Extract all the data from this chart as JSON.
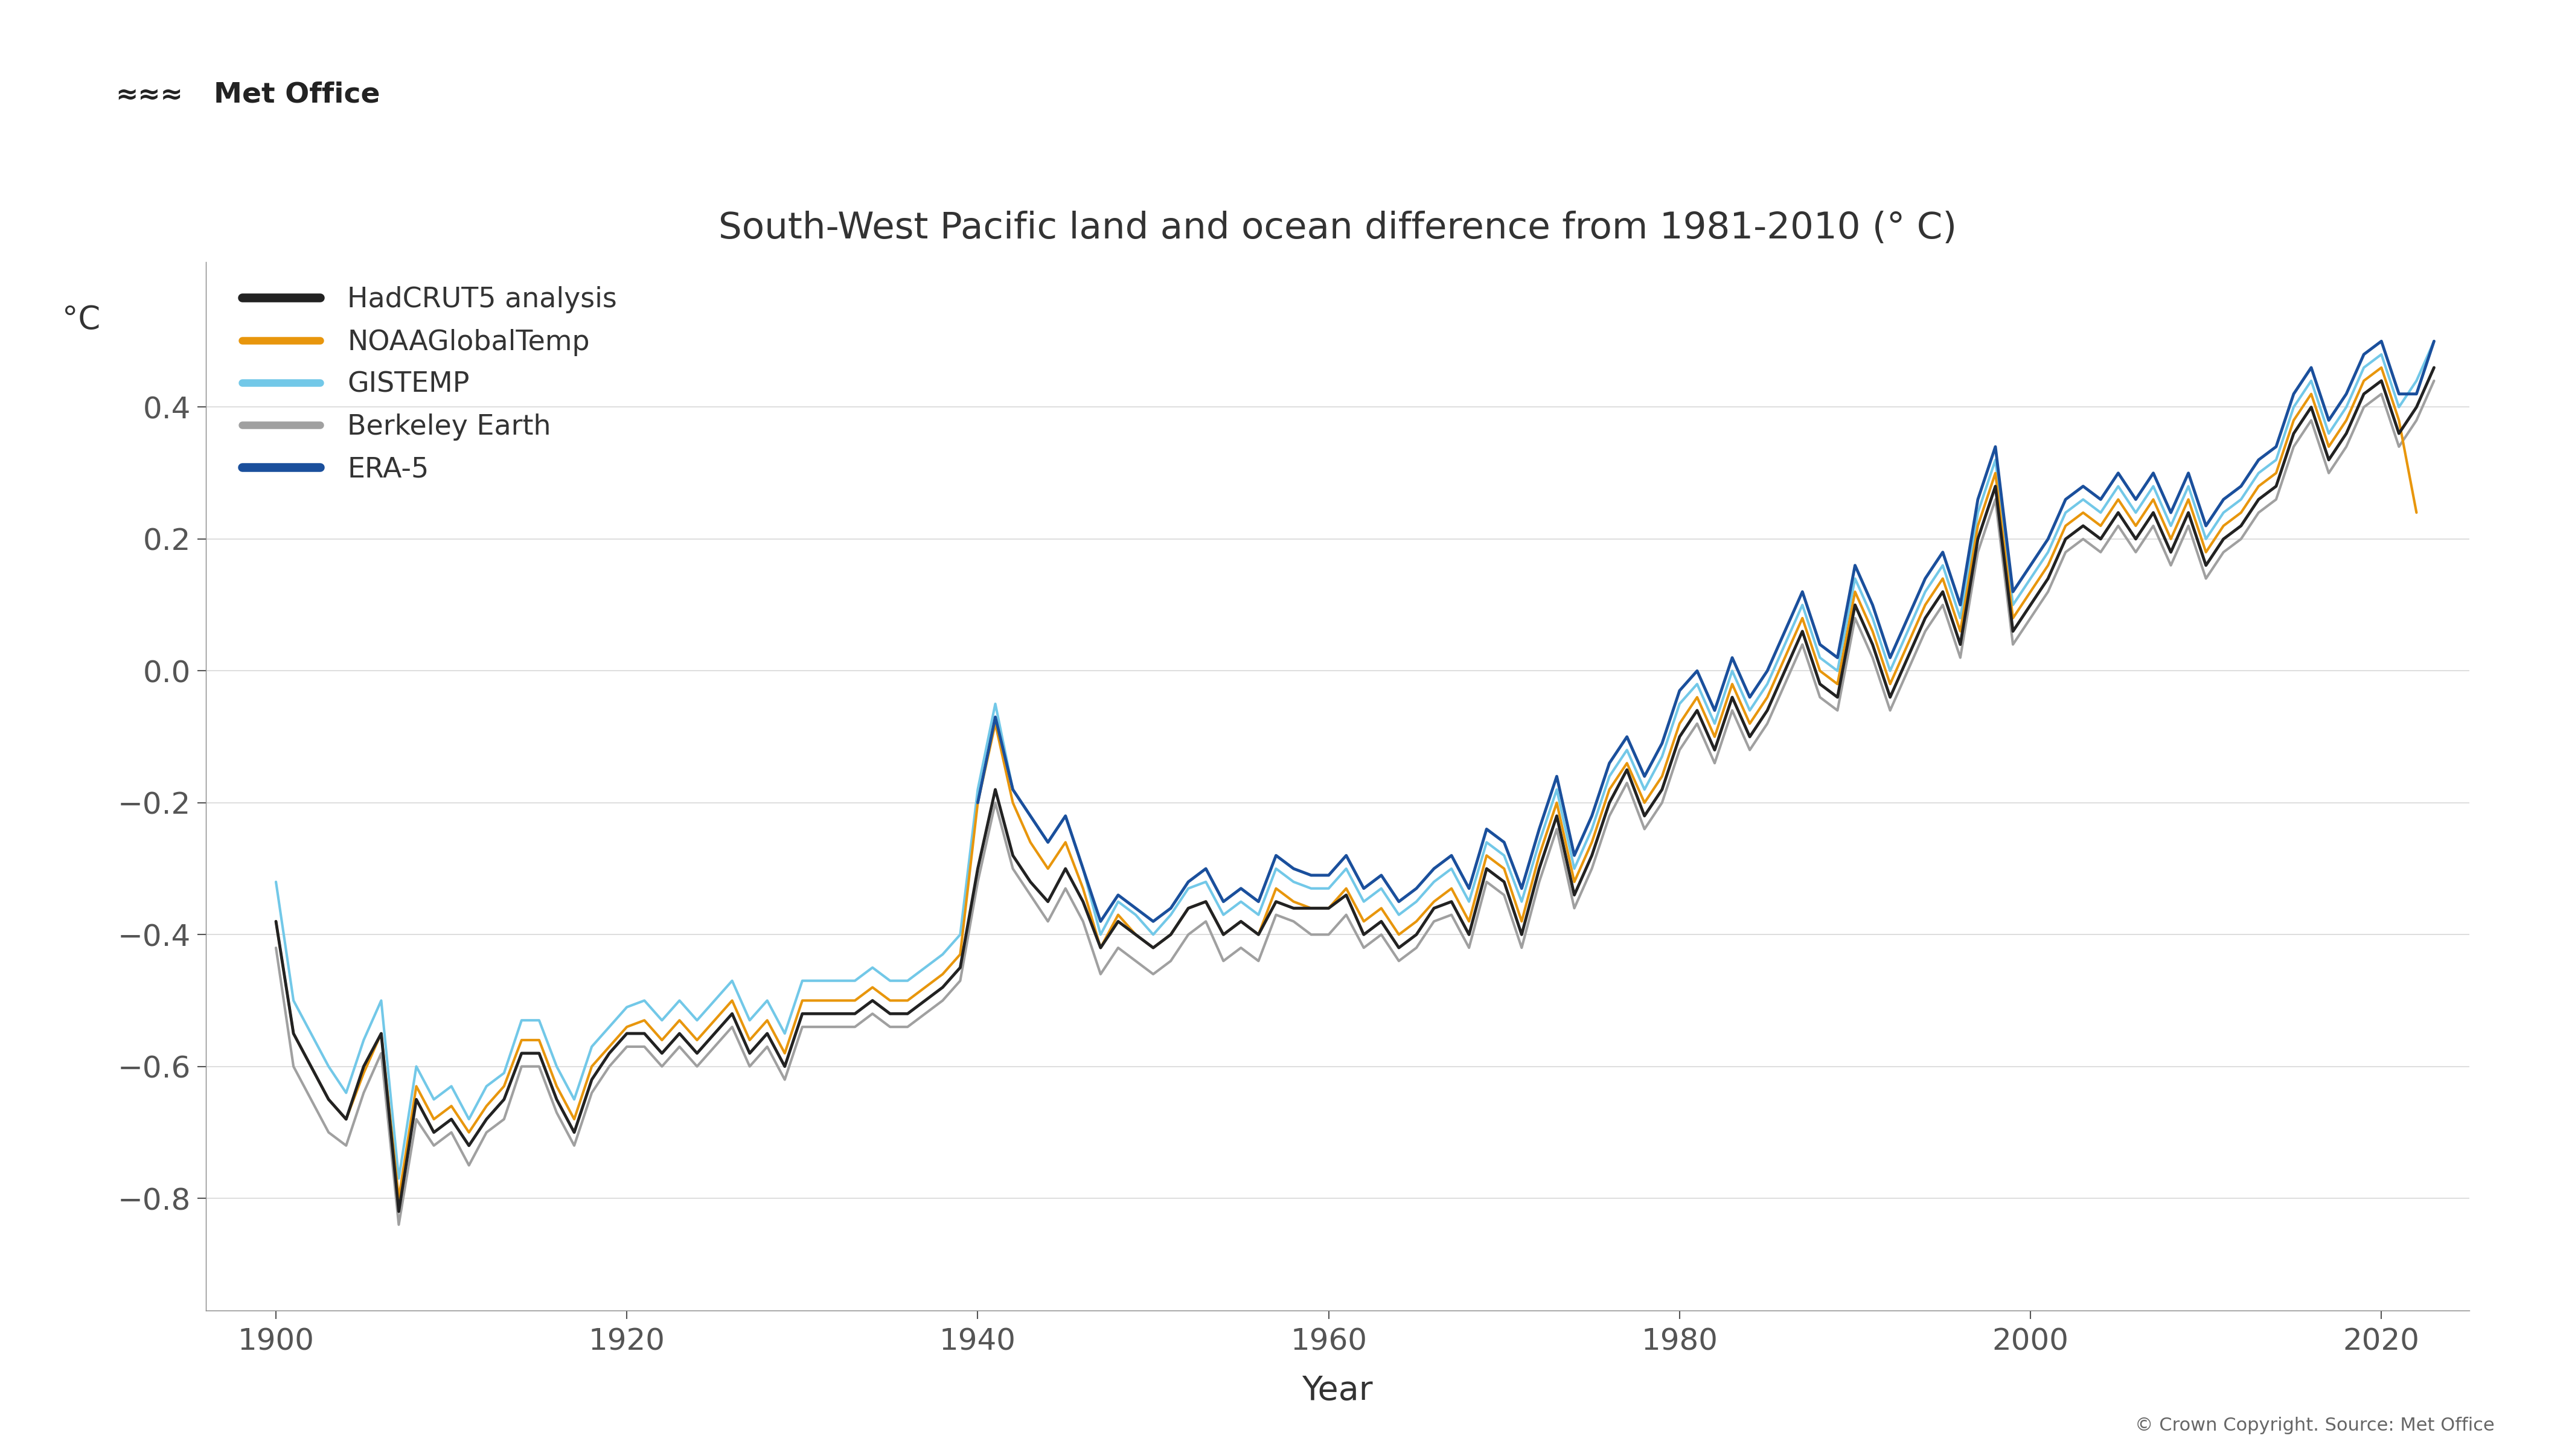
{
  "title": "South-West Pacific land and ocean difference from 1981-2010 (° C)",
  "ylabel": "°C",
  "xlabel": "Year",
  "copyright": "© Crown Copyright. Source: Met Office",
  "ylim": [
    -0.97,
    0.62
  ],
  "xlim": [
    1896,
    2025
  ],
  "yticks": [
    -0.8,
    -0.6,
    -0.4,
    -0.2,
    0.0,
    0.2,
    0.4
  ],
  "xticks": [
    1900,
    1920,
    1940,
    1960,
    1980,
    2000,
    2020
  ],
  "series_colors": {
    "HadCRUT5": "#222222",
    "NOAA": "#e8960c",
    "GISTEMP": "#72c8e8",
    "Berkeley": "#a0a0a0",
    "ERA5": "#1a4f9c"
  },
  "series_widths": {
    "HadCRUT5": 3.5,
    "NOAA": 3.0,
    "GISTEMP": 3.0,
    "Berkeley": 3.0,
    "ERA5": 3.5
  },
  "legend_labels": [
    "HadCRUT5 analysis",
    "NOAAGlobalTemp",
    "GISTEMP",
    "Berkeley Earth",
    "ERA-5"
  ],
  "HadCRUT5": {
    "years": [
      1900,
      1901,
      1902,
      1903,
      1904,
      1905,
      1906,
      1907,
      1908,
      1909,
      1910,
      1911,
      1912,
      1913,
      1914,
      1915,
      1916,
      1917,
      1918,
      1919,
      1920,
      1921,
      1922,
      1923,
      1924,
      1925,
      1926,
      1927,
      1928,
      1929,
      1930,
      1931,
      1932,
      1933,
      1934,
      1935,
      1936,
      1937,
      1938,
      1939,
      1940,
      1941,
      1942,
      1943,
      1944,
      1945,
      1946,
      1947,
      1948,
      1949,
      1950,
      1951,
      1952,
      1953,
      1954,
      1955,
      1956,
      1957,
      1958,
      1959,
      1960,
      1961,
      1962,
      1963,
      1964,
      1965,
      1966,
      1967,
      1968,
      1969,
      1970,
      1971,
      1972,
      1973,
      1974,
      1975,
      1976,
      1977,
      1978,
      1979,
      1980,
      1981,
      1982,
      1983,
      1984,
      1985,
      1986,
      1987,
      1988,
      1989,
      1990,
      1991,
      1992,
      1993,
      1994,
      1995,
      1996,
      1997,
      1998,
      1999,
      2000,
      2001,
      2002,
      2003,
      2004,
      2005,
      2006,
      2007,
      2008,
      2009,
      2010,
      2011,
      2012,
      2013,
      2014,
      2015,
      2016,
      2017,
      2018,
      2019,
      2020,
      2021,
      2022,
      2023
    ],
    "values": [
      -0.38,
      -0.55,
      -0.6,
      -0.65,
      -0.68,
      -0.6,
      -0.55,
      -0.82,
      -0.65,
      -0.7,
      -0.68,
      -0.72,
      -0.68,
      -0.65,
      -0.58,
      -0.58,
      -0.65,
      -0.7,
      -0.62,
      -0.58,
      -0.55,
      -0.55,
      -0.58,
      -0.55,
      -0.58,
      -0.55,
      -0.52,
      -0.58,
      -0.55,
      -0.6,
      -0.52,
      -0.52,
      -0.52,
      -0.52,
      -0.5,
      -0.52,
      -0.52,
      -0.5,
      -0.48,
      -0.45,
      -0.3,
      -0.18,
      -0.28,
      -0.32,
      -0.35,
      -0.3,
      -0.35,
      -0.42,
      -0.38,
      -0.4,
      -0.42,
      -0.4,
      -0.36,
      -0.35,
      -0.4,
      -0.38,
      -0.4,
      -0.35,
      -0.36,
      -0.36,
      -0.36,
      -0.34,
      -0.4,
      -0.38,
      -0.42,
      -0.4,
      -0.36,
      -0.35,
      -0.4,
      -0.3,
      -0.32,
      -0.4,
      -0.3,
      -0.22,
      -0.34,
      -0.28,
      -0.2,
      -0.15,
      -0.22,
      -0.18,
      -0.1,
      -0.06,
      -0.12,
      -0.04,
      -0.1,
      -0.06,
      0.0,
      0.06,
      -0.02,
      -0.04,
      0.1,
      0.04,
      -0.04,
      0.02,
      0.08,
      0.12,
      0.04,
      0.2,
      0.28,
      0.06,
      0.1,
      0.14,
      0.2,
      0.22,
      0.2,
      0.24,
      0.2,
      0.24,
      0.18,
      0.24,
      0.16,
      0.2,
      0.22,
      0.26,
      0.28,
      0.36,
      0.4,
      0.32,
      0.36,
      0.42,
      0.44,
      0.36,
      0.4,
      0.46
    ]
  },
  "NOAA": {
    "years": [
      1900,
      1901,
      1902,
      1903,
      1904,
      1905,
      1906,
      1907,
      1908,
      1909,
      1910,
      1911,
      1912,
      1913,
      1914,
      1915,
      1916,
      1917,
      1918,
      1919,
      1920,
      1921,
      1922,
      1923,
      1924,
      1925,
      1926,
      1927,
      1928,
      1929,
      1930,
      1931,
      1932,
      1933,
      1934,
      1935,
      1936,
      1937,
      1938,
      1939,
      1940,
      1941,
      1942,
      1943,
      1944,
      1945,
      1946,
      1947,
      1948,
      1949,
      1950,
      1951,
      1952,
      1953,
      1954,
      1955,
      1956,
      1957,
      1958,
      1959,
      1960,
      1961,
      1962,
      1963,
      1964,
      1965,
      1966,
      1967,
      1968,
      1969,
      1970,
      1971,
      1972,
      1973,
      1974,
      1975,
      1976,
      1977,
      1978,
      1979,
      1980,
      1981,
      1982,
      1983,
      1984,
      1985,
      1986,
      1987,
      1988,
      1989,
      1990,
      1991,
      1992,
      1993,
      1994,
      1995,
      1996,
      1997,
      1998,
      1999,
      2000,
      2001,
      2002,
      2003,
      2004,
      2005,
      2006,
      2007,
      2008,
      2009,
      2010,
      2011,
      2012,
      2013,
      2014,
      2015,
      2016,
      2017,
      2018,
      2019,
      2020,
      2021,
      2022,
      2023
    ],
    "values": [
      -0.38,
      -0.55,
      -0.6,
      -0.65,
      -0.68,
      -0.61,
      -0.55,
      -0.8,
      -0.63,
      -0.68,
      -0.66,
      -0.7,
      -0.66,
      -0.63,
      -0.56,
      -0.56,
      -0.63,
      -0.68,
      -0.6,
      -0.57,
      -0.54,
      -0.53,
      -0.56,
      -0.53,
      -0.56,
      -0.53,
      -0.5,
      -0.56,
      -0.53,
      -0.58,
      -0.5,
      -0.5,
      -0.5,
      -0.5,
      -0.48,
      -0.5,
      -0.5,
      -0.48,
      -0.46,
      -0.43,
      -0.2,
      -0.08,
      -0.2,
      -0.26,
      -0.3,
      -0.26,
      -0.33,
      -0.42,
      -0.37,
      -0.4,
      -0.42,
      -0.4,
      -0.36,
      -0.35,
      -0.4,
      -0.38,
      -0.4,
      -0.33,
      -0.35,
      -0.36,
      -0.36,
      -0.33,
      -0.38,
      -0.36,
      -0.4,
      -0.38,
      -0.35,
      -0.33,
      -0.38,
      -0.28,
      -0.3,
      -0.38,
      -0.28,
      -0.2,
      -0.32,
      -0.26,
      -0.18,
      -0.14,
      -0.2,
      -0.16,
      -0.08,
      -0.04,
      -0.1,
      -0.02,
      -0.08,
      -0.04,
      0.02,
      0.08,
      0.0,
      -0.02,
      0.12,
      0.06,
      -0.02,
      0.04,
      0.1,
      0.14,
      0.06,
      0.22,
      0.3,
      0.08,
      0.12,
      0.16,
      0.22,
      0.24,
      0.22,
      0.26,
      0.22,
      0.26,
      0.2,
      0.26,
      0.18,
      0.22,
      0.24,
      0.28,
      0.3,
      0.38,
      0.42,
      0.34,
      0.38,
      0.44,
      0.46,
      0.38,
      0.24,
      null
    ]
  },
  "GISTEMP": {
    "years": [
      1900,
      1901,
      1902,
      1903,
      1904,
      1905,
      1906,
      1907,
      1908,
      1909,
      1910,
      1911,
      1912,
      1913,
      1914,
      1915,
      1916,
      1917,
      1918,
      1919,
      1920,
      1921,
      1922,
      1923,
      1924,
      1925,
      1926,
      1927,
      1928,
      1929,
      1930,
      1931,
      1932,
      1933,
      1934,
      1935,
      1936,
      1937,
      1938,
      1939,
      1940,
      1941,
      1942,
      1943,
      1944,
      1945,
      1946,
      1947,
      1948,
      1949,
      1950,
      1951,
      1952,
      1953,
      1954,
      1955,
      1956,
      1957,
      1958,
      1959,
      1960,
      1961,
      1962,
      1963,
      1964,
      1965,
      1966,
      1967,
      1968,
      1969,
      1970,
      1971,
      1972,
      1973,
      1974,
      1975,
      1976,
      1977,
      1978,
      1979,
      1980,
      1981,
      1982,
      1983,
      1984,
      1985,
      1986,
      1987,
      1988,
      1989,
      1990,
      1991,
      1992,
      1993,
      1994,
      1995,
      1996,
      1997,
      1998,
      1999,
      2000,
      2001,
      2002,
      2003,
      2004,
      2005,
      2006,
      2007,
      2008,
      2009,
      2010,
      2011,
      2012,
      2013,
      2014,
      2015,
      2016,
      2017,
      2018,
      2019,
      2020,
      2021,
      2022,
      2023
    ],
    "values": [
      -0.32,
      -0.5,
      -0.55,
      -0.6,
      -0.64,
      -0.56,
      -0.5,
      -0.77,
      -0.6,
      -0.65,
      -0.63,
      -0.68,
      -0.63,
      -0.61,
      -0.53,
      -0.53,
      -0.6,
      -0.65,
      -0.57,
      -0.54,
      -0.51,
      -0.5,
      -0.53,
      -0.5,
      -0.53,
      -0.5,
      -0.47,
      -0.53,
      -0.5,
      -0.55,
      -0.47,
      -0.47,
      -0.47,
      -0.47,
      -0.45,
      -0.47,
      -0.47,
      -0.45,
      -0.43,
      -0.4,
      -0.18,
      -0.05,
      -0.18,
      -0.22,
      -0.26,
      -0.22,
      -0.3,
      -0.4,
      -0.35,
      -0.37,
      -0.4,
      -0.37,
      -0.33,
      -0.32,
      -0.37,
      -0.35,
      -0.37,
      -0.3,
      -0.32,
      -0.33,
      -0.33,
      -0.3,
      -0.35,
      -0.33,
      -0.37,
      -0.35,
      -0.32,
      -0.3,
      -0.35,
      -0.26,
      -0.28,
      -0.35,
      -0.26,
      -0.18,
      -0.3,
      -0.24,
      -0.16,
      -0.12,
      -0.18,
      -0.13,
      -0.05,
      -0.02,
      -0.08,
      0.0,
      -0.06,
      -0.02,
      0.04,
      0.1,
      0.02,
      0.0,
      0.14,
      0.08,
      0.0,
      0.06,
      0.12,
      0.16,
      0.08,
      0.24,
      0.32,
      0.1,
      0.14,
      0.18,
      0.24,
      0.26,
      0.24,
      0.28,
      0.24,
      0.28,
      0.22,
      0.28,
      0.2,
      0.24,
      0.26,
      0.3,
      0.32,
      0.4,
      0.44,
      0.36,
      0.4,
      0.46,
      0.48,
      0.4,
      0.44,
      0.5
    ]
  },
  "Berkeley": {
    "years": [
      1900,
      1901,
      1902,
      1903,
      1904,
      1905,
      1906,
      1907,
      1908,
      1909,
      1910,
      1911,
      1912,
      1913,
      1914,
      1915,
      1916,
      1917,
      1918,
      1919,
      1920,
      1921,
      1922,
      1923,
      1924,
      1925,
      1926,
      1927,
      1928,
      1929,
      1930,
      1931,
      1932,
      1933,
      1934,
      1935,
      1936,
      1937,
      1938,
      1939,
      1940,
      1941,
      1942,
      1943,
      1944,
      1945,
      1946,
      1947,
      1948,
      1949,
      1950,
      1951,
      1952,
      1953,
      1954,
      1955,
      1956,
      1957,
      1958,
      1959,
      1960,
      1961,
      1962,
      1963,
      1964,
      1965,
      1966,
      1967,
      1968,
      1969,
      1970,
      1971,
      1972,
      1973,
      1974,
      1975,
      1976,
      1977,
      1978,
      1979,
      1980,
      1981,
      1982,
      1983,
      1984,
      1985,
      1986,
      1987,
      1988,
      1989,
      1990,
      1991,
      1992,
      1993,
      1994,
      1995,
      1996,
      1997,
      1998,
      1999,
      2000,
      2001,
      2002,
      2003,
      2004,
      2005,
      2006,
      2007,
      2008,
      2009,
      2010,
      2011,
      2012,
      2013,
      2014,
      2015,
      2016,
      2017,
      2018,
      2019,
      2020,
      2021,
      2022,
      2023
    ],
    "values": [
      -0.42,
      -0.6,
      -0.65,
      -0.7,
      -0.72,
      -0.64,
      -0.58,
      -0.84,
      -0.68,
      -0.72,
      -0.7,
      -0.75,
      -0.7,
      -0.68,
      -0.6,
      -0.6,
      -0.67,
      -0.72,
      -0.64,
      -0.6,
      -0.57,
      -0.57,
      -0.6,
      -0.57,
      -0.6,
      -0.57,
      -0.54,
      -0.6,
      -0.57,
      -0.62,
      -0.54,
      -0.54,
      -0.54,
      -0.54,
      -0.52,
      -0.54,
      -0.54,
      -0.52,
      -0.5,
      -0.47,
      -0.32,
      -0.2,
      -0.3,
      -0.34,
      -0.38,
      -0.33,
      -0.38,
      -0.46,
      -0.42,
      -0.44,
      -0.46,
      -0.44,
      -0.4,
      -0.38,
      -0.44,
      -0.42,
      -0.44,
      -0.37,
      -0.38,
      -0.4,
      -0.4,
      -0.37,
      -0.42,
      -0.4,
      -0.44,
      -0.42,
      -0.38,
      -0.37,
      -0.42,
      -0.32,
      -0.34,
      -0.42,
      -0.32,
      -0.24,
      -0.36,
      -0.3,
      -0.22,
      -0.17,
      -0.24,
      -0.2,
      -0.12,
      -0.08,
      -0.14,
      -0.06,
      -0.12,
      -0.08,
      -0.02,
      0.04,
      -0.04,
      -0.06,
      0.08,
      0.02,
      -0.06,
      0.0,
      0.06,
      0.1,
      0.02,
      0.18,
      0.26,
      0.04,
      0.08,
      0.12,
      0.18,
      0.2,
      0.18,
      0.22,
      0.18,
      0.22,
      0.16,
      0.22,
      0.14,
      0.18,
      0.2,
      0.24,
      0.26,
      0.34,
      0.38,
      0.3,
      0.34,
      0.4,
      0.42,
      0.34,
      0.38,
      0.44
    ]
  },
  "ERA5": {
    "years": [
      1940,
      1941,
      1942,
      1943,
      1944,
      1945,
      1946,
      1947,
      1948,
      1949,
      1950,
      1951,
      1952,
      1953,
      1954,
      1955,
      1956,
      1957,
      1958,
      1959,
      1960,
      1961,
      1962,
      1963,
      1964,
      1965,
      1966,
      1967,
      1968,
      1969,
      1970,
      1971,
      1972,
      1973,
      1974,
      1975,
      1976,
      1977,
      1978,
      1979,
      1980,
      1981,
      1982,
      1983,
      1984,
      1985,
      1986,
      1987,
      1988,
      1989,
      1990,
      1991,
      1992,
      1993,
      1994,
      1995,
      1996,
      1997,
      1998,
      1999,
      2000,
      2001,
      2002,
      2003,
      2004,
      2005,
      2006,
      2007,
      2008,
      2009,
      2010,
      2011,
      2012,
      2013,
      2014,
      2015,
      2016,
      2017,
      2018,
      2019,
      2020,
      2021,
      2022,
      2023
    ],
    "values": [
      -0.2,
      -0.07,
      -0.18,
      -0.22,
      -0.26,
      -0.22,
      -0.3,
      -0.38,
      -0.34,
      -0.36,
      -0.38,
      -0.36,
      -0.32,
      -0.3,
      -0.35,
      -0.33,
      -0.35,
      -0.28,
      -0.3,
      -0.31,
      -0.31,
      -0.28,
      -0.33,
      -0.31,
      -0.35,
      -0.33,
      -0.3,
      -0.28,
      -0.33,
      -0.24,
      -0.26,
      -0.33,
      -0.24,
      -0.16,
      -0.28,
      -0.22,
      -0.14,
      -0.1,
      -0.16,
      -0.11,
      -0.03,
      -0.0,
      -0.06,
      0.02,
      -0.04,
      -0.0,
      0.06,
      0.12,
      0.04,
      0.02,
      0.16,
      0.1,
      0.02,
      0.08,
      0.14,
      0.18,
      0.1,
      0.26,
      0.34,
      0.12,
      0.16,
      0.2,
      0.26,
      0.28,
      0.26,
      0.3,
      0.26,
      0.3,
      0.24,
      0.3,
      0.22,
      0.26,
      0.28,
      0.32,
      0.34,
      0.42,
      0.46,
      0.38,
      0.42,
      0.48,
      0.5,
      0.42,
      0.42,
      0.5
    ]
  },
  "background_color": "#ffffff",
  "grid_color": "#d8d8d8",
  "text_color": "#333333",
  "tick_color": "#555555"
}
